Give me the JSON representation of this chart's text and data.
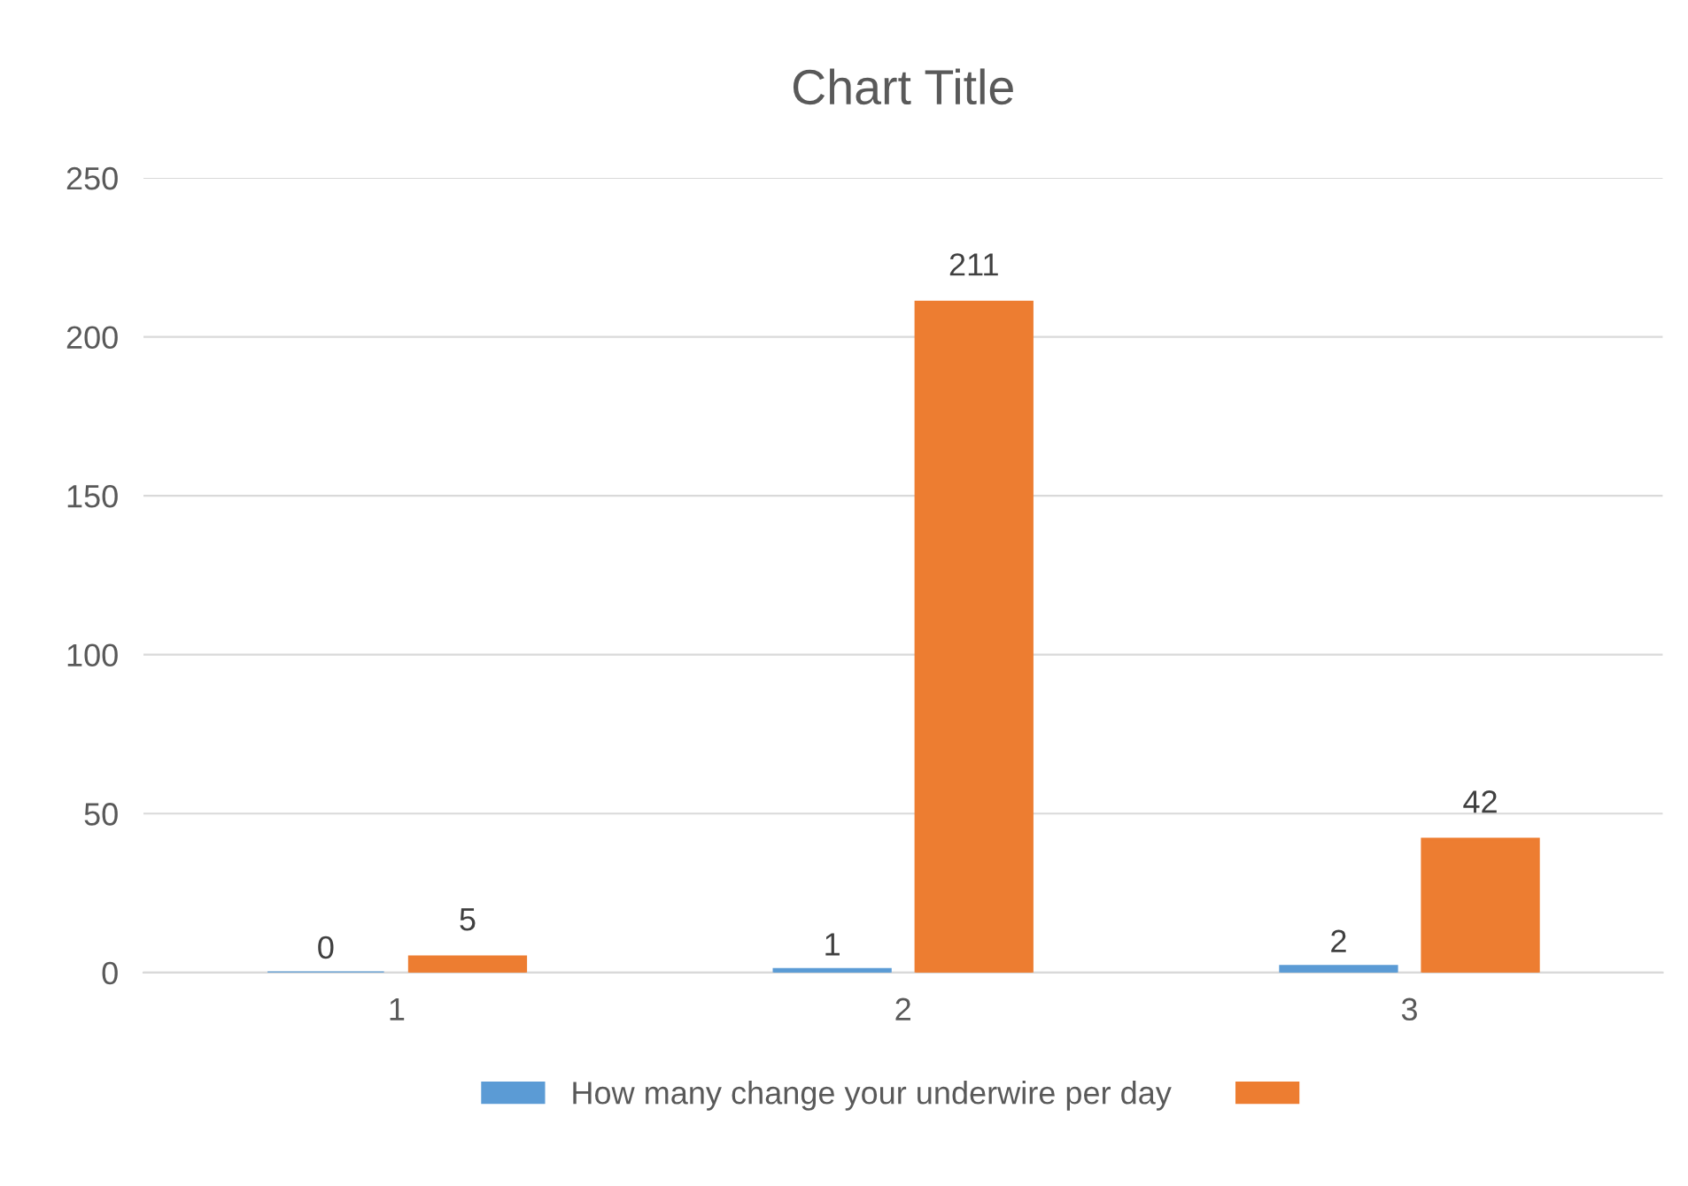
{
  "chart_data": {
    "type": "bar",
    "title": "Chart Title",
    "categories": [
      "1",
      "2",
      "3"
    ],
    "series": [
      {
        "name": "How many change your underwire per day",
        "color": "#5b9bd5",
        "values": [
          0,
          1,
          2
        ]
      },
      {
        "color": "#ed7d31",
        "values": [
          5,
          211,
          42
        ]
      }
    ],
    "ylim": [
      0,
      250
    ],
    "yticks": [
      0,
      50,
      100,
      150,
      200,
      250
    ],
    "grid": "y",
    "legend": "bottom",
    "data_labels": true
  }
}
